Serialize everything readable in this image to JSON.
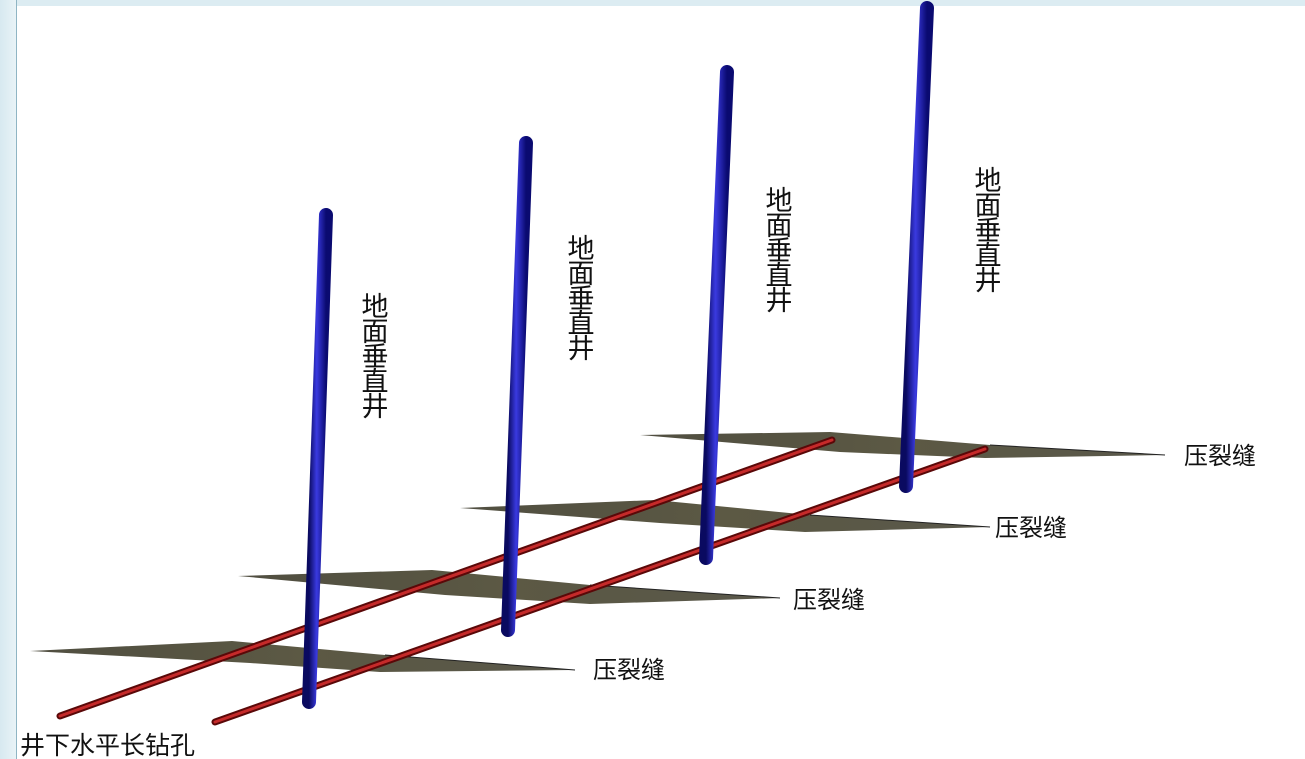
{
  "labels": {
    "vertical_well": "地面垂直井",
    "fracture": "压裂缝",
    "borehole": "井下水平长钻孔"
  },
  "colors": {
    "vertical_well": "#1e1ea8",
    "borehole": "#9a1414",
    "fracture": "#474536",
    "text": "#111111"
  },
  "elements": {
    "vertical_well_count": 4,
    "fracture_count": 4,
    "horizontal_borehole_count": 2
  }
}
